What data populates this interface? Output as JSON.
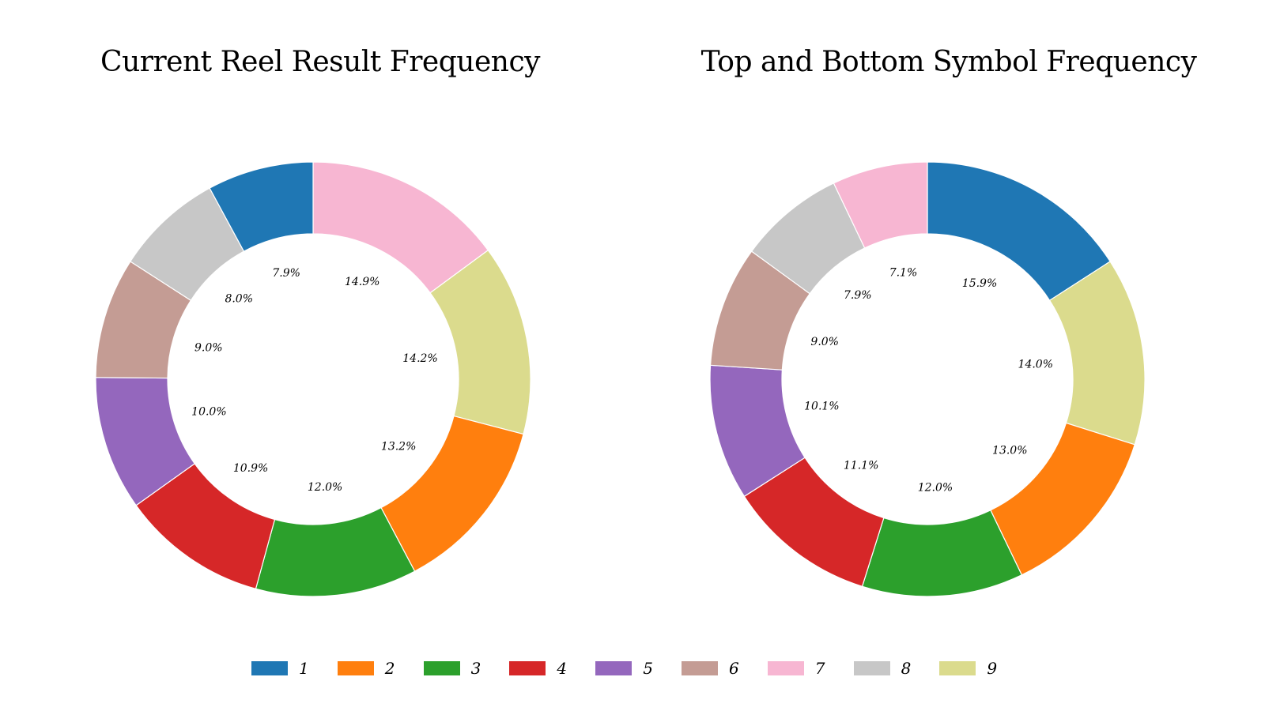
{
  "chart_data": [
    {
      "type": "pie",
      "donut": true,
      "title": "Current Reel Result Frequency",
      "categories": [
        "1",
        "2",
        "3",
        "4",
        "5",
        "6",
        "7",
        "8",
        "9"
      ],
      "values": [
        7.9,
        13.2,
        12.0,
        10.9,
        10.0,
        9.0,
        14.9,
        8.0,
        14.2
      ],
      "labels": [
        "7.9%",
        "13.2%",
        "12.0%",
        "10.9%",
        "10.0%",
        "9.0%",
        "14.9%",
        "8.0%",
        "14.2%"
      ],
      "order": [
        "7",
        "9",
        "2",
        "3",
        "4",
        "5",
        "6",
        "8",
        "1"
      ]
    },
    {
      "type": "pie",
      "donut": true,
      "title": "Top and Bottom Symbol Frequency",
      "categories": [
        "1",
        "2",
        "3",
        "4",
        "5",
        "6",
        "7",
        "8",
        "9"
      ],
      "values": [
        15.9,
        13.0,
        12.0,
        11.1,
        10.1,
        9.0,
        7.1,
        7.9,
        14.0
      ],
      "labels": [
        "15.9%",
        "13.0%",
        "12.0%",
        "11.1%",
        "10.1%",
        "9.0%",
        "7.1%",
        "7.9%",
        "14.0%"
      ],
      "order": [
        "1",
        "9",
        "2",
        "3",
        "4",
        "5",
        "6",
        "8",
        "7"
      ]
    }
  ],
  "legend": {
    "position": "bottom-center",
    "items": [
      {
        "label": "1",
        "color": "#1f77b4"
      },
      {
        "label": "2",
        "color": "#ff7f0e"
      },
      {
        "label": "3",
        "color": "#2ca02c"
      },
      {
        "label": "4",
        "color": "#d62728"
      },
      {
        "label": "5",
        "color": "#9467bd"
      },
      {
        "label": "6",
        "color": "#c49c94"
      },
      {
        "label": "7",
        "color": "#f7b6d2"
      },
      {
        "label": "8",
        "color": "#c7c7c7"
      },
      {
        "label": "9",
        "color": "#dbdb8d"
      }
    ]
  }
}
